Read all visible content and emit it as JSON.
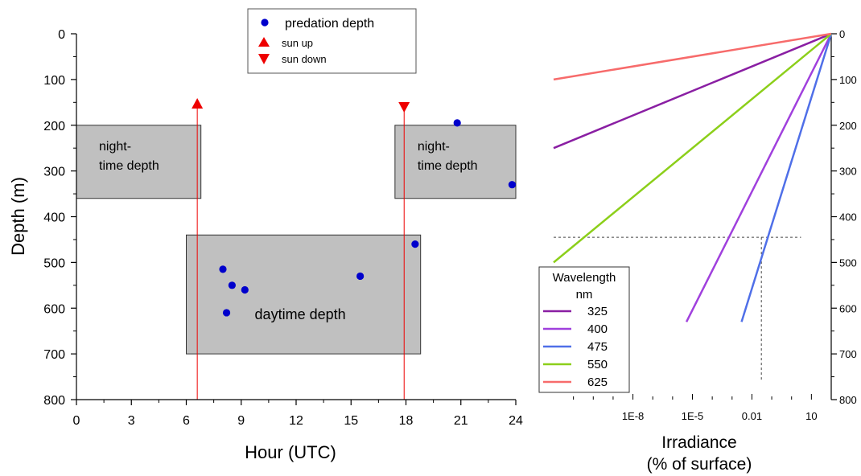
{
  "chart_data": [
    {
      "type": "scatter",
      "xlabel": "Hour (UTC)",
      "ylabel": "Depth (m)",
      "xlim": [
        0,
        24
      ],
      "ylim": [
        0,
        800
      ],
      "y_inverted": true,
      "xticks": [
        "0",
        "3",
        "6",
        "9",
        "12",
        "15",
        "18",
        "21",
        "24"
      ],
      "yticks": [
        "0",
        "100",
        "200",
        "300",
        "400",
        "500",
        "600",
        "700",
        "800"
      ],
      "legend": {
        "placement": "top-center",
        "entries": [
          {
            "label": "predation depth",
            "marker": "circle",
            "color": "#0000cc"
          },
          {
            "label": "sun up",
            "marker": "triangle-up",
            "color": "#ee0000"
          },
          {
            "label": "sun down",
            "marker": "triangle-down",
            "color": "#ee0000"
          }
        ]
      },
      "series": [
        {
          "name": "predation depth",
          "color": "#0000cc",
          "points": [
            [
              8.0,
              515
            ],
            [
              8.5,
              550
            ],
            [
              9.2,
              560
            ],
            [
              8.2,
              610
            ],
            [
              15.5,
              530
            ],
            [
              18.5,
              460
            ],
            [
              20.8,
              195
            ],
            [
              23.8,
              330
            ]
          ]
        }
      ],
      "sun_events": [
        {
          "label": "sun up",
          "hour": 6.6,
          "depth": 153,
          "color": "#ee0000"
        },
        {
          "label": "sun down",
          "hour": 17.9,
          "depth": 160,
          "color": "#ee0000"
        }
      ],
      "regions": [
        {
          "label_lines": [
            "night-",
            "time depth"
          ],
          "x": [
            0,
            6.8
          ],
          "y": [
            200,
            360
          ]
        },
        {
          "label_lines": [
            "night-",
            "time depth"
          ],
          "x": [
            17.4,
            24
          ],
          "y": [
            200,
            360
          ]
        },
        {
          "label_lines": [
            "daytime depth"
          ],
          "x": [
            6.0,
            18.8
          ],
          "y": [
            440,
            700
          ]
        }
      ],
      "region_color": "#c0c0c0"
    },
    {
      "type": "line",
      "xlabel_lines": [
        "Irradiance",
        "(% of surface)"
      ],
      "x_scale": "log",
      "xlim": [
        1e-12,
        100
      ],
      "ylim": [
        0,
        800
      ],
      "y_inverted": true,
      "xticks": [
        {
          "value": 1e-08,
          "label": "1E-8"
        },
        {
          "value": 1e-05,
          "label": "1E-5"
        },
        {
          "value": 0.01,
          "label": "0.01"
        },
        {
          "value": 10,
          "label": "10"
        }
      ],
      "yticks": [
        "0",
        "100",
        "200",
        "300",
        "400",
        "500",
        "600",
        "700",
        "800"
      ],
      "legend": {
        "title_lines": [
          "Wavelength",
          "nm"
        ],
        "placement": "bottom-left"
      },
      "series": [
        {
          "name": "325",
          "color": "#8a1fa3",
          "points": [
            [
              100,
              0
            ],
            [
              1e-12,
              250
            ]
          ]
        },
        {
          "name": "400",
          "color": "#a040dd",
          "points": [
            [
              100,
              0
            ],
            [
              5e-06,
              630
            ]
          ]
        },
        {
          "name": "475",
          "color": "#4f6fe8",
          "points": [
            [
              100,
              0
            ],
            [
              0.003,
              630
            ]
          ]
        },
        {
          "name": "550",
          "color": "#8ccf1a",
          "points": [
            [
              100,
              0
            ],
            [
              1e-12,
              500
            ]
          ]
        },
        {
          "name": "625",
          "color": "#f76b6b",
          "points": [
            [
              100,
              0
            ],
            [
              1e-12,
              100
            ]
          ]
        }
      ],
      "reference_lines": [
        {
          "orientation": "horizontal",
          "depth": 445,
          "x_from": 1e-12,
          "x_to": 3
        },
        {
          "orientation": "vertical",
          "x": 0.03,
          "depth_from": 445,
          "depth_to": 760
        }
      ]
    }
  ]
}
